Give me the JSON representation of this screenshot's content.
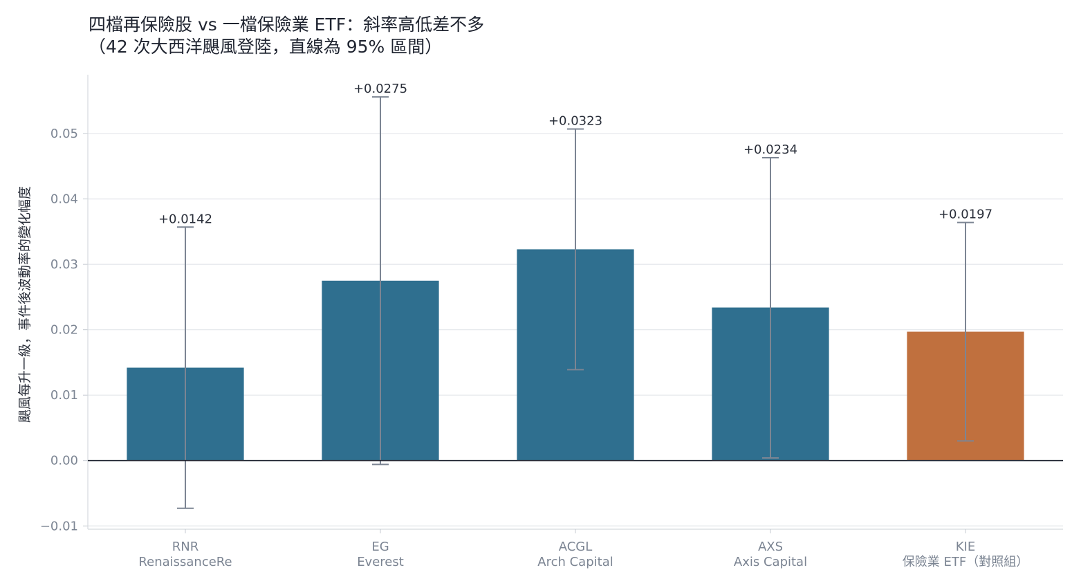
{
  "chart_data": {
    "type": "bar",
    "title": "四檔再保險股 vs 一檔保險業 ETF：斜率高低差不多",
    "subtitle": "（42 次大西洋颶風登陸，直線為 95% 區間）",
    "ylabel": "颶風每升一級，事件後波動率的變化幅度",
    "xlabel": "",
    "ylim": [
      -0.0105,
      0.059
    ],
    "yticks": [
      -0.01,
      0.0,
      0.01,
      0.02,
      0.03,
      0.04,
      0.05
    ],
    "ytick_labels": [
      "−0.01",
      "0.00",
      "0.01",
      "0.02",
      "0.03",
      "0.04",
      "0.05"
    ],
    "grid": true,
    "categories": [
      {
        "ticker": "RNR",
        "name": "RenaissanceRe"
      },
      {
        "ticker": "EG",
        "name": "Everest"
      },
      {
        "ticker": "ACGL",
        "name": "Arch Capital"
      },
      {
        "ticker": "AXS",
        "name": "Axis Capital"
      },
      {
        "ticker": "KIE",
        "name": "保險業 ETF（對照組）"
      }
    ],
    "values": [
      0.0142,
      0.0275,
      0.0323,
      0.0234,
      0.0197
    ],
    "value_labels": [
      "+0.0142",
      "+0.0275",
      "+0.0323",
      "+0.0234",
      "+0.0197"
    ],
    "ci_low": [
      -0.0073,
      -0.0006,
      0.0139,
      0.0004,
      0.003
    ],
    "ci_high": [
      0.0357,
      0.0556,
      0.0507,
      0.0463,
      0.0364
    ],
    "colors": [
      "#2f6f8f",
      "#2f6f8f",
      "#2f6f8f",
      "#2f6f8f",
      "#c0703e"
    ],
    "errorbar_color": "#7c8593"
  }
}
